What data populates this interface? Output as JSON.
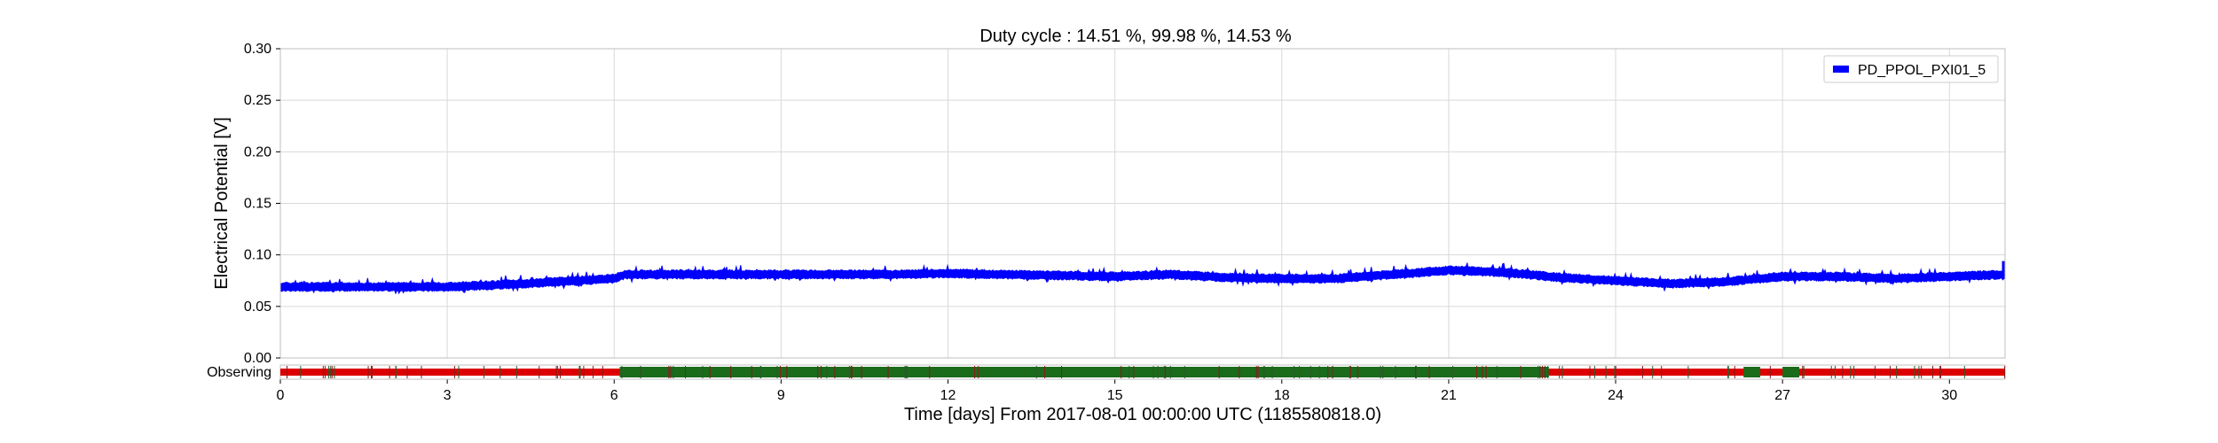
{
  "chart_data": {
    "type": "line",
    "title": "Duty cycle : 14.51 %, 99.98 %, 14.53 %",
    "xlabel": "Time [days] From 2017-08-01 00:00:00 UTC (1185580818.0)",
    "ylabel": "Electrical Potential [V]",
    "xlim": [
      0,
      31
    ],
    "ylim": [
      0,
      0.3
    ],
    "x_ticks": [
      0,
      3,
      6,
      9,
      12,
      15,
      18,
      21,
      24,
      27,
      30
    ],
    "y_ticks": [
      "0.00",
      "0.05",
      "0.10",
      "0.15",
      "0.20",
      "0.25",
      "0.30"
    ],
    "grid": true,
    "legend_position": "top-right",
    "series": [
      {
        "name": "PD_PPOL_PXI01_5",
        "color": "#0000ff",
        "x": [
          0,
          1,
          2,
          3,
          4,
          5,
          6,
          6.2,
          7,
          8,
          9,
          10,
          11,
          12,
          13,
          14,
          15,
          16,
          17,
          18,
          19,
          20,
          21,
          22,
          23,
          24,
          25,
          26,
          27,
          28,
          29,
          30,
          31
        ],
        "y_mid": [
          0.069,
          0.069,
          0.069,
          0.069,
          0.071,
          0.074,
          0.077,
          0.081,
          0.081,
          0.081,
          0.081,
          0.081,
          0.081,
          0.082,
          0.081,
          0.08,
          0.079,
          0.081,
          0.078,
          0.077,
          0.077,
          0.081,
          0.085,
          0.083,
          0.078,
          0.075,
          0.072,
          0.074,
          0.079,
          0.079,
          0.077,
          0.079,
          0.081
        ],
        "band": 0.006
      }
    ],
    "segment_panel": {
      "label": "Observing",
      "colors": {
        "on": "#1a6b1a",
        "off": "#dd0000"
      },
      "on_segments": [
        [
          6.1,
          20.0
        ],
        [
          20.0,
          22.8
        ],
        [
          26.3,
          26.6
        ],
        [
          27.0,
          27.3
        ]
      ]
    }
  }
}
